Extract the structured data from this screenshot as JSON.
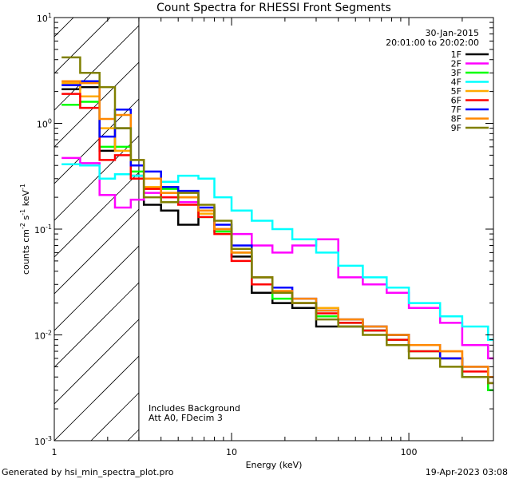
{
  "chart_data": {
    "type": "line",
    "title": "Count Spectra for RHESSI Front Segments",
    "xlabel": "Energy (keV)",
    "ylabel": {
      "base": "counts cm",
      "exp1": "-2",
      "mid": " s",
      "exp2": "-1",
      "tail": " keV",
      "exp3": "-1"
    },
    "x_scale": "log",
    "y_scale": "log",
    "xlim": [
      1,
      300
    ],
    "ylim": [
      0.001,
      10
    ],
    "x_ticks": [
      {
        "value": 1,
        "label": "1"
      },
      {
        "value": 10,
        "label": "10"
      },
      {
        "value": 100,
        "label": "100"
      }
    ],
    "y_ticks": [
      {
        "value": 0.001,
        "base": "10",
        "exp": "-3"
      },
      {
        "value": 0.01,
        "base": "10",
        "exp": "-2"
      },
      {
        "value": 0.1,
        "base": "10",
        "exp": "-1"
      },
      {
        "value": 1,
        "base": "10",
        "exp": "0"
      },
      {
        "value": 10,
        "base": "10",
        "exp": "1"
      }
    ],
    "excluded_region": {
      "from": 1,
      "to": 3,
      "style": "hatched"
    },
    "date": "30-Jan-2015",
    "time_range": "20:01:00 to 20:02:00",
    "annotations": [
      "Includes Background",
      "Att A0, FDecim 3"
    ],
    "series": [
      {
        "name": "1F",
        "color": "#000000",
        "points": [
          [
            1.1,
            2.1
          ],
          [
            1.4,
            2.2
          ],
          [
            1.8,
            0.55
          ],
          [
            2.2,
            0.9
          ],
          [
            2.7,
            0.32
          ],
          [
            3.2,
            0.17
          ],
          [
            4,
            0.15
          ],
          [
            5,
            0.11
          ],
          [
            6.5,
            0.15
          ],
          [
            8,
            0.1
          ],
          [
            10,
            0.055
          ],
          [
            13,
            0.025
          ],
          [
            17,
            0.02
          ],
          [
            22,
            0.018
          ],
          [
            30,
            0.012
          ],
          [
            40,
            0.012
          ],
          [
            55,
            0.011
          ],
          [
            75,
            0.01
          ],
          [
            100,
            0.008
          ],
          [
            150,
            0.006
          ],
          [
            200,
            0.004
          ],
          [
            280,
            0.003
          ]
        ]
      },
      {
        "name": "2F",
        "color": "#ff00ff",
        "points": [
          [
            1.1,
            0.47
          ],
          [
            1.4,
            0.42
          ],
          [
            1.8,
            0.21
          ],
          [
            2.2,
            0.16
          ],
          [
            2.7,
            0.19
          ],
          [
            3.2,
            0.22
          ],
          [
            4,
            0.2
          ],
          [
            5,
            0.18
          ],
          [
            6.5,
            0.15
          ],
          [
            8,
            0.1
          ],
          [
            10,
            0.09
          ],
          [
            13,
            0.07
          ],
          [
            17,
            0.06
          ],
          [
            22,
            0.07
          ],
          [
            30,
            0.08
          ],
          [
            40,
            0.035
          ],
          [
            55,
            0.03
          ],
          [
            75,
            0.025
          ],
          [
            100,
            0.018
          ],
          [
            150,
            0.013
          ],
          [
            200,
            0.008
          ],
          [
            280,
            0.006
          ]
        ]
      },
      {
        "name": "3F",
        "color": "#00ff00",
        "points": [
          [
            1.1,
            1.5
          ],
          [
            1.4,
            1.6
          ],
          [
            1.8,
            0.6
          ],
          [
            2.2,
            0.6
          ],
          [
            2.7,
            0.35
          ],
          [
            3.2,
            0.3
          ],
          [
            4,
            0.24
          ],
          [
            5,
            0.2
          ],
          [
            6.5,
            0.13
          ],
          [
            8,
            0.095
          ],
          [
            10,
            0.06
          ],
          [
            13,
            0.03
          ],
          [
            17,
            0.022
          ],
          [
            22,
            0.02
          ],
          [
            30,
            0.015
          ],
          [
            40,
            0.013
          ],
          [
            55,
            0.011
          ],
          [
            75,
            0.009
          ],
          [
            100,
            0.007
          ],
          [
            150,
            0.006
          ],
          [
            200,
            0.004
          ],
          [
            280,
            0.003
          ]
        ]
      },
      {
        "name": "4F",
        "color": "#00ffff",
        "points": [
          [
            1.1,
            0.41
          ],
          [
            1.4,
            0.4
          ],
          [
            1.8,
            0.3
          ],
          [
            2.2,
            0.33
          ],
          [
            2.7,
            0.32
          ],
          [
            3.2,
            0.3
          ],
          [
            4,
            0.28
          ],
          [
            5,
            0.32
          ],
          [
            6.5,
            0.3
          ],
          [
            8,
            0.2
          ],
          [
            10,
            0.15
          ],
          [
            13,
            0.12
          ],
          [
            17,
            0.1
          ],
          [
            22,
            0.08
          ],
          [
            30,
            0.06
          ],
          [
            40,
            0.045
          ],
          [
            55,
            0.035
          ],
          [
            75,
            0.028
          ],
          [
            100,
            0.02
          ],
          [
            150,
            0.015
          ],
          [
            200,
            0.012
          ],
          [
            280,
            0.009
          ]
        ]
      },
      {
        "name": "5F",
        "color": "#ffaa00",
        "points": [
          [
            1.1,
            2.4
          ],
          [
            1.4,
            1.8
          ],
          [
            1.8,
            0.9
          ],
          [
            2.2,
            0.55
          ],
          [
            2.7,
            0.3
          ],
          [
            3.2,
            0.25
          ],
          [
            4,
            0.22
          ],
          [
            5,
            0.2
          ],
          [
            6.5,
            0.14
          ],
          [
            8,
            0.1
          ],
          [
            10,
            0.06
          ],
          [
            13,
            0.035
          ],
          [
            17,
            0.025
          ],
          [
            22,
            0.02
          ],
          [
            30,
            0.018
          ],
          [
            40,
            0.014
          ],
          [
            55,
            0.012
          ],
          [
            75,
            0.01
          ],
          [
            100,
            0.008
          ],
          [
            150,
            0.007
          ],
          [
            200,
            0.005
          ],
          [
            280,
            0.004
          ]
        ]
      },
      {
        "name": "6F",
        "color": "#ff0000",
        "points": [
          [
            1.1,
            1.9
          ],
          [
            1.4,
            1.4
          ],
          [
            1.8,
            0.45
          ],
          [
            2.2,
            0.5
          ],
          [
            2.7,
            0.3
          ],
          [
            3.2,
            0.24
          ],
          [
            4,
            0.2
          ],
          [
            5,
            0.17
          ],
          [
            6.5,
            0.13
          ],
          [
            8,
            0.09
          ],
          [
            10,
            0.05
          ],
          [
            13,
            0.03
          ],
          [
            17,
            0.025
          ],
          [
            22,
            0.02
          ],
          [
            30,
            0.016
          ],
          [
            40,
            0.013
          ],
          [
            55,
            0.011
          ],
          [
            75,
            0.009
          ],
          [
            100,
            0.007
          ],
          [
            150,
            0.006
          ],
          [
            200,
            0.0045
          ],
          [
            280,
            0.0035
          ]
        ]
      },
      {
        "name": "7F",
        "color": "#0000ff",
        "points": [
          [
            1.1,
            2.3
          ],
          [
            1.4,
            2.5
          ],
          [
            1.8,
            0.75
          ],
          [
            2.2,
            1.35
          ],
          [
            2.7,
            0.4
          ],
          [
            3.2,
            0.35
          ],
          [
            4,
            0.25
          ],
          [
            5,
            0.23
          ],
          [
            6.5,
            0.16
          ],
          [
            8,
            0.11
          ],
          [
            10,
            0.07
          ],
          [
            13,
            0.035
          ],
          [
            17,
            0.028
          ],
          [
            22,
            0.022
          ],
          [
            30,
            0.017
          ],
          [
            40,
            0.014
          ],
          [
            55,
            0.012
          ],
          [
            75,
            0.01
          ],
          [
            100,
            0.008
          ],
          [
            150,
            0.006
          ],
          [
            200,
            0.005
          ],
          [
            280,
            0.004
          ]
        ]
      },
      {
        "name": "8F",
        "color": "#ff8800",
        "points": [
          [
            1.1,
            2.5
          ],
          [
            1.4,
            2.4
          ],
          [
            1.8,
            1.1
          ],
          [
            2.2,
            1.2
          ],
          [
            2.7,
            0.45
          ],
          [
            3.2,
            0.3
          ],
          [
            4,
            0.22
          ],
          [
            5,
            0.2
          ],
          [
            6.5,
            0.15
          ],
          [
            8,
            0.1
          ],
          [
            10,
            0.06
          ],
          [
            13,
            0.035
          ],
          [
            17,
            0.026
          ],
          [
            22,
            0.022
          ],
          [
            30,
            0.017
          ],
          [
            40,
            0.014
          ],
          [
            55,
            0.012
          ],
          [
            75,
            0.01
          ],
          [
            100,
            0.008
          ],
          [
            150,
            0.007
          ],
          [
            200,
            0.005
          ],
          [
            280,
            0.004
          ]
        ]
      },
      {
        "name": "9F",
        "color": "#808000",
        "points": [
          [
            1.1,
            4.2
          ],
          [
            1.4,
            3.0
          ],
          [
            1.8,
            2.2
          ],
          [
            2.2,
            0.9
          ],
          [
            2.7,
            0.45
          ],
          [
            3.2,
            0.2
          ],
          [
            4,
            0.18
          ],
          [
            5,
            0.22
          ],
          [
            6.5,
            0.17
          ],
          [
            8,
            0.12
          ],
          [
            10,
            0.065
          ],
          [
            13,
            0.035
          ],
          [
            17,
            0.025
          ],
          [
            22,
            0.02
          ],
          [
            30,
            0.014
          ],
          [
            40,
            0.012
          ],
          [
            55,
            0.01
          ],
          [
            75,
            0.008
          ],
          [
            100,
            0.006
          ],
          [
            150,
            0.005
          ],
          [
            200,
            0.004
          ],
          [
            280,
            0.0035
          ]
        ]
      }
    ]
  },
  "footer": {
    "generated_by": "Generated by hsi_min_spectra_plot.pro",
    "date": "19-Apr-2023 03:08"
  }
}
